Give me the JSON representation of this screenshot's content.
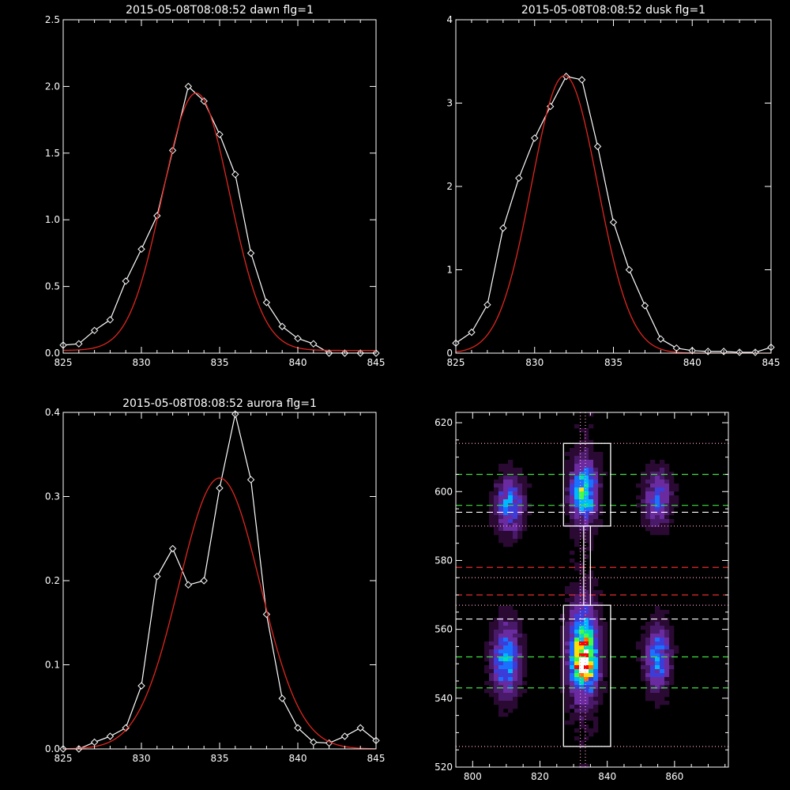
{
  "chart_data": [
    {
      "type": "line",
      "title": "2015-05-08T08:08:52 dawn flg=1",
      "xlim": [
        825,
        845
      ],
      "ylim": [
        0,
        2.5
      ],
      "xticks": [
        825,
        830,
        835,
        840,
        845
      ],
      "xtick_labels": [
        "825",
        "830",
        "835",
        "840",
        "845"
      ],
      "yticks": [
        0,
        0.5,
        1.0,
        1.5,
        2.0,
        2.5
      ],
      "ytick_labels": [
        "0.0",
        "0.5",
        "1.0",
        "1.5",
        "2.0",
        "2.5"
      ],
      "series": [
        {
          "kind": "data",
          "color": "#ffffff",
          "marker": "diamond",
          "x": [
            825,
            826,
            827,
            828,
            829,
            830,
            831,
            832,
            833,
            834,
            835,
            836,
            837,
            838,
            839,
            840,
            841,
            842,
            843,
            844,
            845
          ],
          "y": [
            0.06,
            0.07,
            0.17,
            0.25,
            0.54,
            0.78,
            1.03,
            1.52,
            2.0,
            1.89,
            1.64,
            1.34,
            0.75,
            0.38,
            0.2,
            0.11,
            0.07,
            0.0,
            0.0,
            0.0,
            0.0
          ]
        },
        {
          "kind": "fit",
          "color": "#e0261f",
          "amplitude": 1.93,
          "center": 833.5,
          "sigma": 2.15,
          "offset": 0.02
        }
      ]
    },
    {
      "type": "line",
      "title": "2015-05-08T08:08:52 dusk flg=1",
      "xlim": [
        825,
        845
      ],
      "ylim": [
        0,
        4
      ],
      "xticks": [
        825,
        830,
        835,
        840,
        845
      ],
      "xtick_labels": [
        "825",
        "830",
        "835",
        "840",
        "845"
      ],
      "yticks": [
        0,
        1,
        2,
        3,
        4
      ],
      "ytick_labels": [
        "0",
        "1",
        "2",
        "3",
        "4"
      ],
      "series": [
        {
          "kind": "data",
          "color": "#ffffff",
          "marker": "diamond",
          "x": [
            825,
            826,
            827,
            828,
            829,
            830,
            831,
            832,
            833,
            834,
            835,
            836,
            837,
            838,
            839,
            840,
            841,
            842,
            843,
            844,
            845
          ],
          "y": [
            0.12,
            0.25,
            0.58,
            1.5,
            2.1,
            2.58,
            2.96,
            3.32,
            3.28,
            2.48,
            1.57,
            1.0,
            0.57,
            0.17,
            0.06,
            0.03,
            0.02,
            0.02,
            0.01,
            0.01,
            0.07
          ]
        },
        {
          "kind": "fit",
          "color": "#e0261f",
          "amplitude": 3.33,
          "center": 831.9,
          "sigma": 2.1,
          "offset": 0.0
        }
      ]
    },
    {
      "type": "line",
      "title": "2015-05-08T08:08:52 aurora flg=1",
      "xlim": [
        825,
        845
      ],
      "ylim": [
        0,
        0.4
      ],
      "xticks": [
        825,
        830,
        835,
        840,
        845
      ],
      "xtick_labels": [
        "825",
        "830",
        "835",
        "840",
        "845"
      ],
      "yticks": [
        0,
        0.1,
        0.2,
        0.3,
        0.4
      ],
      "ytick_labels": [
        "0.0",
        "0.1",
        "0.2",
        "0.3",
        "0.4"
      ],
      "series": [
        {
          "kind": "data",
          "color": "#ffffff",
          "marker": "diamond",
          "x": [
            825,
            826,
            827,
            828,
            829,
            830,
            831,
            832,
            833,
            834,
            835,
            836,
            837,
            838,
            839,
            840,
            841,
            842,
            843,
            844,
            845
          ],
          "y": [
            0.0,
            0.0,
            0.008,
            0.015,
            0.025,
            0.075,
            0.205,
            0.238,
            0.195,
            0.2,
            0.31,
            0.398,
            0.32,
            0.16,
            0.06,
            0.025,
            0.008,
            0.007,
            0.015,
            0.025,
            0.01
          ]
        },
        {
          "kind": "fit",
          "color": "#e0261f",
          "amplitude": 0.322,
          "center": 835.0,
          "sigma": 2.6,
          "offset": 0.0
        }
      ]
    },
    {
      "type": "heatmap",
      "title": "",
      "xlim": [
        795,
        876
      ],
      "ylim": [
        520,
        623
      ],
      "xticks": [
        800,
        820,
        840,
        860
      ],
      "xtick_labels": [
        "800",
        "820",
        "840",
        "860"
      ],
      "yticks": [
        520,
        540,
        560,
        580,
        600,
        620
      ],
      "ytick_labels": [
        "520",
        "540",
        "560",
        "580",
        "600",
        "620"
      ],
      "colors": [
        "#000000",
        "#2a0a33",
        "#4a1a6a",
        "#6a2aa0",
        "#3c3cd8",
        "#1a70ff",
        "#00b8ff",
        "#00e0b0",
        "#40ff40",
        "#ffe000",
        "#ff7000",
        "#ff0000",
        "#ffffff"
      ],
      "blobs": [
        {
          "x": 811,
          "y": 596,
          "sx": 3.0,
          "sy": 6.0,
          "amp": 0.42
        },
        {
          "x": 833,
          "y": 600,
          "sx": 2.7,
          "sy": 6.0,
          "amp": 0.55
        },
        {
          "x": 855,
          "y": 598,
          "sx": 3.0,
          "sy": 6.0,
          "amp": 0.34
        },
        {
          "x": 810,
          "y": 551,
          "sx": 3.0,
          "sy": 7.5,
          "amp": 0.5
        },
        {
          "x": 833,
          "y": 553,
          "sx": 3.0,
          "sy": 8.5,
          "amp": 0.75
        },
        {
          "x": 833,
          "y": 549,
          "sx": 1.5,
          "sy": 2.5,
          "amp": 0.4
        },
        {
          "x": 855,
          "y": 552,
          "sx": 2.8,
          "sy": 7.0,
          "amp": 0.42
        }
      ],
      "boxes": [
        {
          "x0": 827,
          "x1": 841,
          "y0": 590,
          "y1": 614
        },
        {
          "x0": 827,
          "x1": 841,
          "y0": 526,
          "y1": 567
        }
      ],
      "connector": {
        "x0": 833,
        "x1": 835,
        "y0": 567,
        "y1": 590
      },
      "vlines": [
        {
          "x": 832,
          "color": "#ff9fd0",
          "dash": "dotted"
        },
        {
          "x": 833.5,
          "color": "#ff9fd0",
          "dash": "dotted"
        }
      ],
      "hlines": [
        {
          "y": 614,
          "color": "#ff9fd0",
          "dash": "dotted"
        },
        {
          "y": 590,
          "color": "#ff9fd0",
          "dash": "dotted"
        },
        {
          "y": 575,
          "color": "#ff9fd0",
          "dash": "dotted"
        },
        {
          "y": 567,
          "color": "#ff9fd0",
          "dash": "dotted"
        },
        {
          "y": 526,
          "color": "#ff9fd0",
          "dash": "dotted"
        },
        {
          "y": 605,
          "color": "#40e040",
          "dash": "dashed"
        },
        {
          "y": 596,
          "color": "#40e040",
          "dash": "dashed"
        },
        {
          "y": 552,
          "color": "#40e040",
          "dash": "dashed"
        },
        {
          "y": 543,
          "color": "#40e040",
          "dash": "dashed"
        },
        {
          "y": 594,
          "color": "#ffffff",
          "dash": "dashed"
        },
        {
          "y": 563,
          "color": "#ffffff",
          "dash": "dashed"
        },
        {
          "y": 578,
          "color": "#ff3030",
          "dash": "dashed"
        },
        {
          "y": 570,
          "color": "#ff3030",
          "dash": "dashed"
        }
      ]
    }
  ]
}
